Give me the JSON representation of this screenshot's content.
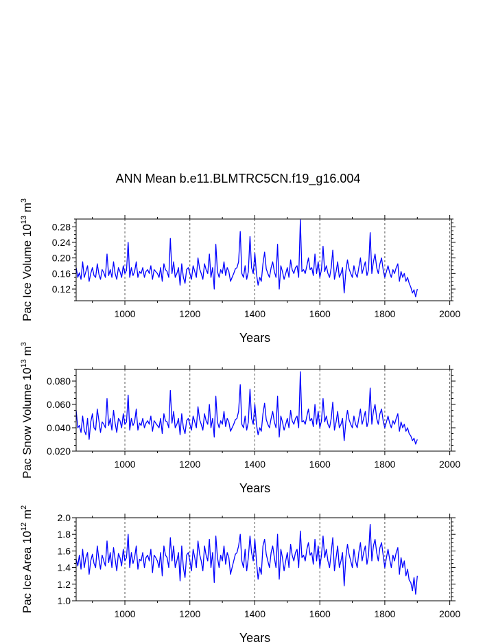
{
  "title": "ANN Mean b.e11.BLMTRC5CN.f19_g16.004",
  "colors": {
    "line": "#0000ff",
    "axis": "#000000",
    "grid": "#555555"
  },
  "chart_data": [
    {
      "type": "line",
      "name": "pac-ice-volume",
      "title": "",
      "xlabel": "Years",
      "ylabel": {
        "main": "Pac Ice Volume 10",
        "exp": "13",
        "unit": " m",
        "unit_exp": "3"
      },
      "xlim": [
        850,
        2005
      ],
      "ylim": [
        0.09,
        0.3
      ],
      "xticks": [
        1000,
        1200,
        1400,
        1600,
        1800,
        2000
      ],
      "xtick_labels": [
        "1000",
        "1200",
        "1400",
        "1600",
        "1800",
        "2000"
      ],
      "yticks": [
        0.12,
        0.16,
        0.2,
        0.24,
        0.28
      ],
      "ytick_labels": [
        "0.12",
        "0.16",
        "0.20",
        "0.24",
        "0.28"
      ],
      "vgrid": [
        1000,
        1200,
        1400,
        1600,
        1800,
        2000
      ],
      "series": {
        "name": "Pac Ice Volume",
        "x_start": 850,
        "x_step": 5,
        "values": [
          0.175,
          0.15,
          0.162,
          0.145,
          0.19,
          0.15,
          0.165,
          0.18,
          0.14,
          0.16,
          0.175,
          0.155,
          0.15,
          0.185,
          0.158,
          0.145,
          0.17,
          0.162,
          0.15,
          0.21,
          0.155,
          0.17,
          0.15,
          0.19,
          0.16,
          0.145,
          0.175,
          0.165,
          0.15,
          0.18,
          0.16,
          0.168,
          0.24,
          0.15,
          0.175,
          0.155,
          0.165,
          0.19,
          0.15,
          0.165,
          0.16,
          0.175,
          0.15,
          0.165,
          0.17,
          0.16,
          0.18,
          0.145,
          0.17,
          0.165,
          0.16,
          0.15,
          0.175,
          0.14,
          0.185,
          0.17,
          0.165,
          0.15,
          0.25,
          0.16,
          0.19,
          0.15,
          0.16,
          0.175,
          0.13,
          0.185,
          0.15,
          0.135,
          0.17,
          0.175,
          0.16,
          0.145,
          0.18,
          0.165,
          0.15,
          0.2,
          0.172,
          0.16,
          0.145,
          0.185,
          0.17,
          0.16,
          0.21,
          0.15,
          0.175,
          0.12,
          0.235,
          0.165,
          0.15,
          0.17,
          0.16,
          0.19,
          0.155,
          0.175,
          0.165,
          0.14,
          0.15,
          0.16,
          0.172,
          0.175,
          0.19,
          0.268,
          0.16,
          0.15,
          0.18,
          0.145,
          0.165,
          0.255,
          0.175,
          0.16,
          0.212,
          0.16,
          0.13,
          0.15,
          0.14,
          0.185,
          0.215,
          0.172,
          0.16,
          0.15,
          0.175,
          0.19,
          0.165,
          0.15,
          0.235,
          0.12,
          0.18,
          0.165,
          0.145,
          0.16,
          0.175,
          0.15,
          0.195,
          0.17,
          0.16,
          0.175,
          0.18,
          0.15,
          0.298,
          0.165,
          0.17,
          0.16,
          0.18,
          0.2,
          0.17,
          0.175,
          0.155,
          0.21,
          0.16,
          0.19,
          0.15,
          0.17,
          0.23,
          0.165,
          0.18,
          0.16,
          0.15,
          0.175,
          0.22,
          0.145,
          0.165,
          0.19,
          0.15,
          0.16,
          0.175,
          0.11,
          0.165,
          0.195,
          0.172,
          0.16,
          0.15,
          0.18,
          0.16,
          0.15,
          0.175,
          0.2,
          0.16,
          0.175,
          0.19,
          0.155,
          0.17,
          0.265,
          0.16,
          0.19,
          0.21,
          0.175,
          0.16,
          0.185,
          0.2,
          0.17,
          0.15,
          0.165,
          0.18,
          0.162,
          0.15,
          0.17,
          0.16,
          0.175,
          0.185,
          0.14,
          0.165,
          0.15,
          0.16,
          0.14,
          0.15,
          0.135,
          0.125,
          0.11,
          0.118,
          0.1,
          0.12
        ]
      }
    },
    {
      "type": "line",
      "name": "pac-snow-volume",
      "title": "",
      "xlabel": "Years",
      "ylabel": {
        "main": "Pac Snow Volume 10",
        "exp": "13",
        "unit": " m",
        "unit_exp": "3"
      },
      "xlim": [
        850,
        2005
      ],
      "ylim": [
        0.02,
        0.09
      ],
      "xticks": [
        1000,
        1200,
        1400,
        1600,
        1800,
        2000
      ],
      "xtick_labels": [
        "1000",
        "1200",
        "1400",
        "1600",
        "1800",
        "2000"
      ],
      "yticks": [
        0.02,
        0.04,
        0.06,
        0.08
      ],
      "ytick_labels": [
        "0.020",
        "0.040",
        "0.060",
        "0.080"
      ],
      "vgrid": [
        1000,
        1200,
        1400,
        1600,
        1800,
        2000
      ],
      "series": {
        "name": "Pac Snow Volume",
        "x_start": 850,
        "x_step": 5,
        "values": [
          0.055,
          0.04,
          0.042,
          0.036,
          0.05,
          0.038,
          0.034,
          0.048,
          0.03,
          0.045,
          0.052,
          0.04,
          0.038,
          0.056,
          0.046,
          0.036,
          0.045,
          0.043,
          0.04,
          0.065,
          0.042,
          0.048,
          0.038,
          0.055,
          0.044,
          0.036,
          0.048,
          0.046,
          0.04,
          0.052,
          0.043,
          0.045,
          0.068,
          0.038,
          0.048,
          0.042,
          0.045,
          0.056,
          0.038,
          0.044,
          0.042,
          0.048,
          0.04,
          0.044,
          0.046,
          0.043,
          0.05,
          0.037,
          0.046,
          0.044,
          0.042,
          0.04,
          0.048,
          0.035,
          0.052,
          0.046,
          0.045,
          0.04,
          0.072,
          0.044,
          0.054,
          0.04,
          0.043,
          0.048,
          0.034,
          0.052,
          0.04,
          0.035,
          0.046,
          0.048,
          0.043,
          0.038,
          0.05,
          0.045,
          0.04,
          0.058,
          0.047,
          0.043,
          0.038,
          0.052,
          0.046,
          0.043,
          0.06,
          0.04,
          0.048,
          0.032,
          0.067,
          0.045,
          0.04,
          0.046,
          0.043,
          0.054,
          0.041,
          0.048,
          0.045,
          0.037,
          0.04,
          0.043,
          0.047,
          0.048,
          0.054,
          0.077,
          0.043,
          0.04,
          0.05,
          0.038,
          0.045,
          0.073,
          0.048,
          0.043,
          0.06,
          0.043,
          0.034,
          0.04,
          0.037,
          0.052,
          0.061,
          0.047,
          0.043,
          0.04,
          0.048,
          0.054,
          0.045,
          0.04,
          0.067,
          0.032,
          0.05,
          0.045,
          0.038,
          0.043,
          0.048,
          0.04,
          0.055,
          0.046,
          0.043,
          0.048,
          0.05,
          0.04,
          0.088,
          0.045,
          0.046,
          0.043,
          0.05,
          0.056,
          0.046,
          0.048,
          0.041,
          0.06,
          0.043,
          0.054,
          0.04,
          0.046,
          0.065,
          0.045,
          0.05,
          0.043,
          0.04,
          0.048,
          0.062,
          0.038,
          0.045,
          0.054,
          0.04,
          0.043,
          0.048,
          0.029,
          0.045,
          0.055,
          0.047,
          0.043,
          0.04,
          0.05,
          0.043,
          0.04,
          0.048,
          0.056,
          0.043,
          0.048,
          0.054,
          0.041,
          0.046,
          0.074,
          0.043,
          0.054,
          0.06,
          0.048,
          0.043,
          0.052,
          0.056,
          0.046,
          0.04,
          0.045,
          0.05,
          0.044,
          0.04,
          0.046,
          0.043,
          0.048,
          0.052,
          0.037,
          0.045,
          0.04,
          0.043,
          0.037,
          0.04,
          0.035,
          0.033,
          0.029,
          0.031,
          0.026,
          0.03
        ]
      }
    },
    {
      "type": "line",
      "name": "pac-ice-area",
      "title": "",
      "xlabel": "Years",
      "ylabel": {
        "main": "Pac Ice Area 10",
        "exp": "12",
        "unit": " m",
        "unit_exp": "2"
      },
      "xlim": [
        850,
        2005
      ],
      "ylim": [
        1.0,
        2.0
      ],
      "xticks": [
        1000,
        1200,
        1400,
        1600,
        1800,
        2000
      ],
      "xtick_labels": [
        "1000",
        "1200",
        "1400",
        "1600",
        "1800",
        "2000"
      ],
      "yticks": [
        1.0,
        1.2,
        1.4,
        1.6,
        1.8,
        2.0
      ],
      "ytick_labels": [
        "1.0",
        "1.2",
        "1.4",
        "1.6",
        "1.8",
        "2.0"
      ],
      "vgrid": [
        1000,
        1200,
        1400,
        1600,
        1800,
        2000
      ],
      "series": {
        "name": "Pac Ice Area",
        "x_start": 850,
        "x_step": 5,
        "values": [
          1.5,
          1.42,
          1.55,
          1.38,
          1.62,
          1.4,
          1.52,
          1.58,
          1.32,
          1.48,
          1.56,
          1.45,
          1.4,
          1.66,
          1.5,
          1.38,
          1.55,
          1.48,
          1.42,
          1.72,
          1.46,
          1.58,
          1.4,
          1.64,
          1.5,
          1.36,
          1.57,
          1.52,
          1.42,
          1.62,
          1.48,
          1.52,
          1.8,
          1.4,
          1.58,
          1.45,
          1.52,
          1.66,
          1.38,
          1.5,
          1.48,
          1.58,
          1.4,
          1.52,
          1.55,
          1.48,
          1.62,
          1.34,
          1.55,
          1.52,
          1.48,
          1.4,
          1.58,
          1.3,
          1.66,
          1.55,
          1.52,
          1.4,
          1.76,
          1.48,
          1.66,
          1.4,
          1.48,
          1.58,
          1.24,
          1.66,
          1.4,
          1.28,
          1.55,
          1.58,
          1.48,
          1.36,
          1.62,
          1.52,
          1.4,
          1.72,
          1.56,
          1.48,
          1.36,
          1.66,
          1.55,
          1.48,
          1.74,
          1.4,
          1.58,
          1.22,
          1.78,
          1.52,
          1.4,
          1.55,
          1.48,
          1.66,
          1.44,
          1.58,
          1.52,
          1.32,
          1.4,
          1.48,
          1.56,
          1.58,
          1.66,
          1.8,
          1.48,
          1.4,
          1.62,
          1.36,
          1.52,
          1.78,
          1.58,
          1.48,
          1.74,
          1.48,
          1.26,
          1.4,
          1.32,
          1.66,
          1.74,
          1.56,
          1.48,
          1.4,
          1.58,
          1.66,
          1.52,
          1.4,
          1.8,
          1.26,
          1.62,
          1.52,
          1.36,
          1.48,
          1.58,
          1.4,
          1.68,
          1.55,
          1.48,
          1.58,
          1.62,
          1.4,
          1.84,
          1.52,
          1.55,
          1.48,
          1.62,
          1.7,
          1.55,
          1.58,
          1.44,
          1.74,
          1.48,
          1.66,
          1.4,
          1.55,
          1.78,
          1.52,
          1.62,
          1.48,
          1.4,
          1.58,
          1.76,
          1.36,
          1.52,
          1.66,
          1.4,
          1.48,
          1.58,
          1.18,
          1.52,
          1.68,
          1.56,
          1.48,
          1.4,
          1.62,
          1.48,
          1.4,
          1.58,
          1.7,
          1.48,
          1.58,
          1.66,
          1.44,
          1.55,
          1.92,
          1.48,
          1.66,
          1.74,
          1.58,
          1.48,
          1.64,
          1.7,
          1.55,
          1.4,
          1.52,
          1.62,
          1.5,
          1.4,
          1.55,
          1.48,
          1.58,
          1.64,
          1.32,
          1.52,
          1.4,
          1.48,
          1.3,
          1.38,
          1.25,
          1.22,
          1.12,
          1.28,
          1.08,
          1.3
        ]
      }
    }
  ]
}
